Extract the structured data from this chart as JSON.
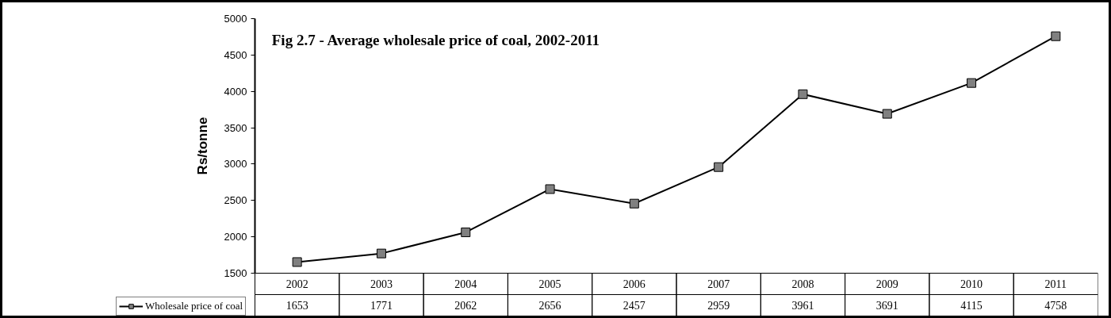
{
  "chart_data": {
    "type": "line",
    "title": "Fig 2.7 - Average wholesale price of coal, 2002-2011",
    "ylabel": "Rs/tonne",
    "categories": [
      "2002",
      "2003",
      "2004",
      "2005",
      "2006",
      "2007",
      "2008",
      "2009",
      "2010",
      "2011"
    ],
    "series": [
      {
        "name": "Wholesale price of coal",
        "color": "#000000",
        "values": [
          1653,
          1771,
          2062,
          2656,
          2457,
          2959,
          3961,
          3691,
          4115,
          4758
        ]
      }
    ],
    "ylim": [
      1500,
      5000
    ],
    "yticks": [
      1500,
      2000,
      2500,
      3000,
      3500,
      4000,
      4500,
      5000
    ],
    "marker": "square",
    "line_style": "solid",
    "grid": false,
    "legend": "bottom left",
    "data_labels": true
  }
}
